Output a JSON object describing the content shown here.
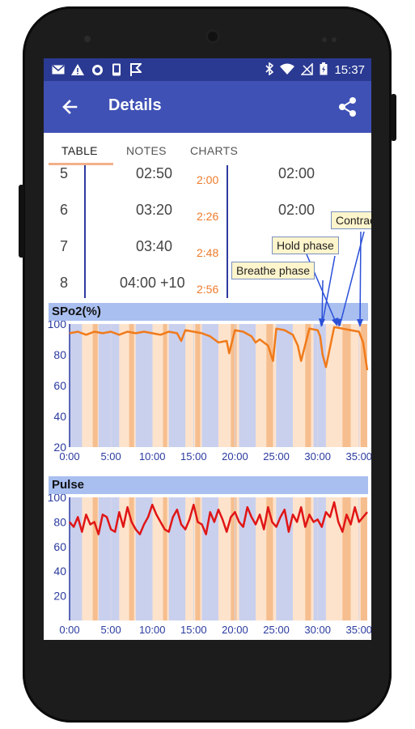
{
  "status_bar": {
    "time": "15:37",
    "left_icons": [
      "mail-icon",
      "warning-icon",
      "circle-icon",
      "phone-icon",
      "flag-icon"
    ],
    "right_icons": [
      "bluetooth-icon",
      "wifi-icon",
      "no-signal-icon",
      "battery-icon"
    ]
  },
  "app_bar": {
    "title": "Details",
    "back_icon": "arrow-back-icon",
    "share_icon": "share-icon",
    "primary_color": "#3f51b5",
    "status_color": "#2a3a92"
  },
  "tabs": [
    {
      "label": "TABLE",
      "active": true
    },
    {
      "label": "NOTES",
      "active": false
    },
    {
      "label": "CHARTS",
      "active": false
    }
  ],
  "table": {
    "rows": [
      {
        "num": "5",
        "hold": "02:50",
        "cum": "2:00",
        "breathe": "02:00"
      },
      {
        "num": "6",
        "hold": "03:20",
        "cum": "2:26",
        "breathe": "02:00"
      },
      {
        "num": "7",
        "hold": "03:40",
        "cum": "2:48",
        "breathe": ""
      },
      {
        "num": "8",
        "hold": "04:00 +10",
        "cum": "2:56",
        "breathe": ""
      }
    ]
  },
  "callouts": {
    "contractions": "Contractions",
    "hold_phase": "Hold  phase",
    "breathe_phase": "Breathe  phase"
  },
  "charts": {
    "spo2_title": "SPo2(%)",
    "pulse_title": "Pulse"
  },
  "chart_data": [
    {
      "type": "line",
      "title": "SPo2(%)",
      "x_ticks": [
        "0:00",
        "5:00",
        "10:00",
        "15:00",
        "20:00",
        "25:00",
        "30:00",
        "35:00"
      ],
      "y_ticks": [
        100,
        80,
        60,
        40,
        20
      ],
      "ylim": [
        20,
        100
      ],
      "xlim_minutes": [
        0,
        36
      ],
      "line_color": "#f07a1a",
      "series": [
        {
          "x": [
            0,
            1,
            2,
            3,
            4,
            5,
            6,
            7,
            8,
            9,
            10,
            11,
            12,
            13,
            13.5,
            14,
            15,
            16,
            17,
            18,
            19,
            19.3,
            20,
            21,
            22,
            22.5,
            23,
            24,
            24.6,
            25,
            26,
            27,
            27.6,
            28,
            29,
            30,
            30.3,
            30.6,
            31,
            32,
            33,
            34,
            35,
            35.5,
            36
          ],
          "values": [
            94,
            95,
            93,
            95,
            94,
            95,
            93,
            95,
            94,
            95,
            94,
            93,
            95,
            94,
            89,
            96,
            95,
            94,
            92,
            88,
            89,
            81,
            96,
            95,
            92,
            88,
            90,
            86,
            76,
            97,
            96,
            93,
            86,
            76,
            97,
            96,
            92,
            80,
            72,
            98,
            97,
            96,
            95,
            88,
            70
          ]
        }
      ]
    },
    {
      "type": "line",
      "title": "Pulse",
      "x_ticks": [
        "0:00",
        "5:00",
        "10:00",
        "15:00",
        "20:00",
        "25:00",
        "30:00",
        "35:00"
      ],
      "y_ticks": [
        100,
        80,
        60,
        40,
        20
      ],
      "ylim": [
        0,
        100
      ],
      "xlim_minutes": [
        0,
        36
      ],
      "line_color": "#e01515",
      "series": [
        {
          "x": [
            0,
            0.5,
            1,
            1.5,
            2,
            2.5,
            3,
            3.5,
            4,
            4.5,
            5,
            5.5,
            6,
            6.5,
            7,
            7.5,
            8,
            8.5,
            9,
            9.5,
            10,
            10.5,
            11,
            11.5,
            12,
            12.5,
            13,
            13.5,
            14,
            14.5,
            15,
            15.5,
            16,
            16.5,
            17,
            17.5,
            18,
            18.5,
            19,
            19.5,
            20,
            20.5,
            21,
            21.5,
            22,
            22.5,
            23,
            23.5,
            24,
            24.5,
            25,
            25.5,
            26,
            26.5,
            27,
            27.5,
            28,
            28.5,
            29,
            29.5,
            30,
            30.5,
            31,
            31.5,
            32,
            32.5,
            33,
            33.5,
            34,
            34.5,
            35,
            35.5,
            36
          ],
          "values": [
            80,
            76,
            84,
            72,
            86,
            78,
            80,
            70,
            86,
            84,
            74,
            72,
            88,
            76,
            92,
            80,
            74,
            70,
            78,
            84,
            94,
            86,
            80,
            74,
            72,
            84,
            90,
            78,
            74,
            82,
            94,
            80,
            78,
            70,
            88,
            80,
            90,
            82,
            72,
            84,
            88,
            80,
            76,
            92,
            84,
            78,
            86,
            74,
            92,
            80,
            76,
            84,
            90,
            72,
            86,
            80,
            92,
            76,
            86,
            80,
            82,
            76,
            88,
            84,
            96,
            80,
            72,
            86,
            78,
            92,
            80,
            84,
            88
          ]
        }
      ]
    }
  ]
}
